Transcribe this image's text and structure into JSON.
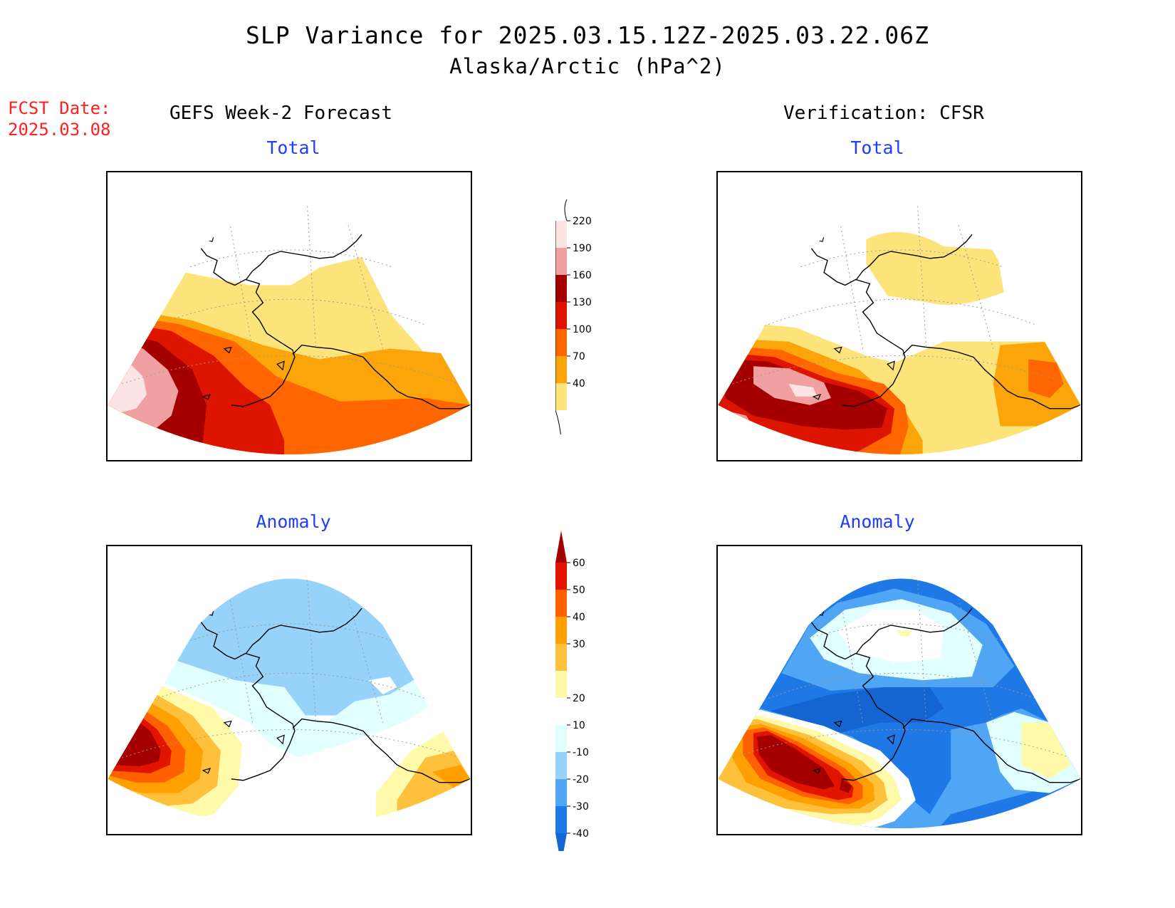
{
  "title": "SLP Variance for 2025.03.15.12Z-2025.03.22.06Z",
  "subtitle": "Alaska/Arctic (hPa^2)",
  "fcst_label": "FCST Date:",
  "fcst_date": "2025.03.08",
  "columns": {
    "left": "GEFS Week-2 Forecast",
    "right": "Verification: CFSR"
  },
  "panels": {
    "top_left": "Total",
    "top_right": "Total",
    "bottom_left": "Anomaly",
    "bottom_right": "Anomaly"
  },
  "colorbars": {
    "total": {
      "labels": [
        "40",
        "70",
        "100",
        "130",
        "160",
        "190",
        "220"
      ],
      "colors": [
        "#fde47a",
        "#fca50a",
        "#ff6600",
        "#dd1500",
        "#a50000",
        "#f0a0a0",
        "#fde4e4"
      ]
    },
    "anomaly": {
      "labels": [
        "-40",
        "-30",
        "-20",
        "-10",
        "10",
        "20",
        "30",
        "40",
        "50",
        "60"
      ],
      "colors": [
        "#1464d2",
        "#1e78e6",
        "#50a5f5",
        "#96d2fa",
        "#e1ffff",
        "#ffffff",
        "#fffaaa",
        "#ffc03c",
        "#ff9f00",
        "#ff6000",
        "#e11400",
        "#a50000"
      ]
    }
  },
  "colors": {
    "title_accent": "#1f3cff",
    "fcst": "#ff2020"
  }
}
